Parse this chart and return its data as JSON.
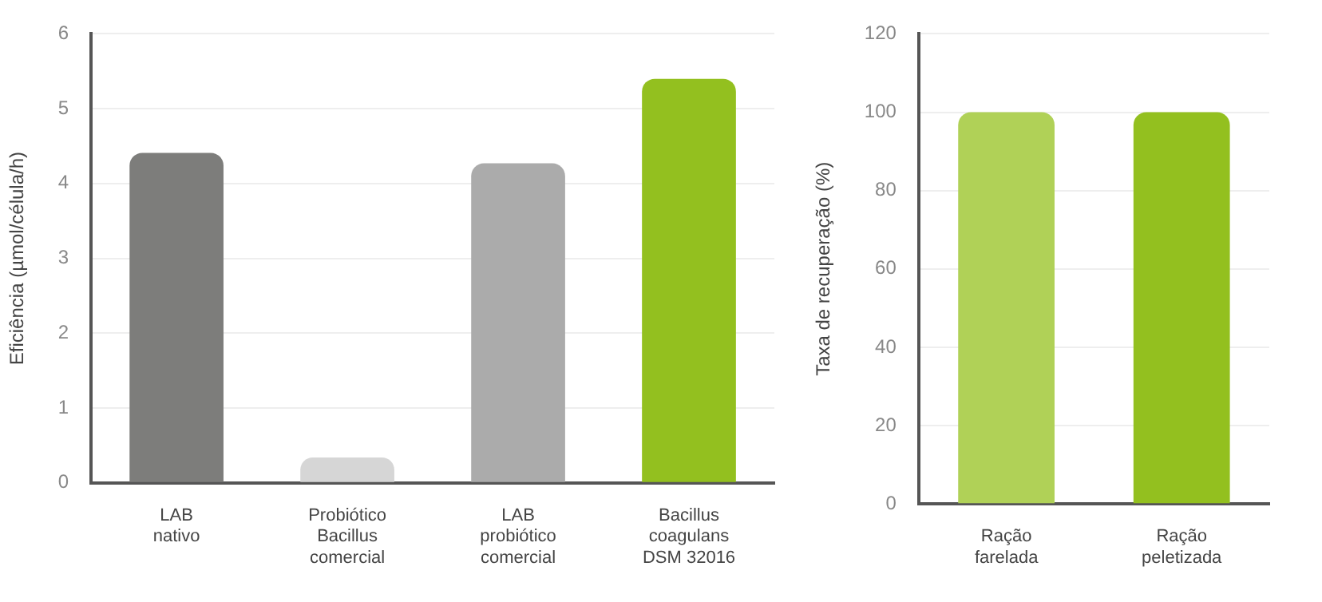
{
  "chart_data": [
    {
      "type": "bar",
      "ylabel": "Eficiência (µmol/célula/h)",
      "categories": [
        "LAB\nnativo",
        "Probiótico\nBacillus\ncomercial",
        "LAB\nprobiótico\ncomercial",
        "Bacillus\ncoagulans\nDSM 32016"
      ],
      "values": [
        4.41,
        0.34,
        4.27,
        5.4
      ],
      "colors": [
        "#7d7d7b",
        "#d6d6d6",
        "#ababab",
        "#93c01f"
      ],
      "ylim": [
        0,
        6
      ],
      "yticks": [
        0,
        1,
        2,
        3,
        4,
        5,
        6
      ],
      "grid": "y"
    },
    {
      "type": "bar",
      "ylabel": "Taxa de recuperação (%)",
      "categories": [
        "Ração\nfarelada",
        "Ração\npeletizada"
      ],
      "values": [
        100,
        100
      ],
      "colors": [
        "#b0d157",
        "#93c01f"
      ],
      "ylim": [
        0,
        120
      ],
      "yticks": [
        0,
        20,
        40,
        60,
        80,
        100,
        120
      ],
      "grid": "y"
    }
  ]
}
